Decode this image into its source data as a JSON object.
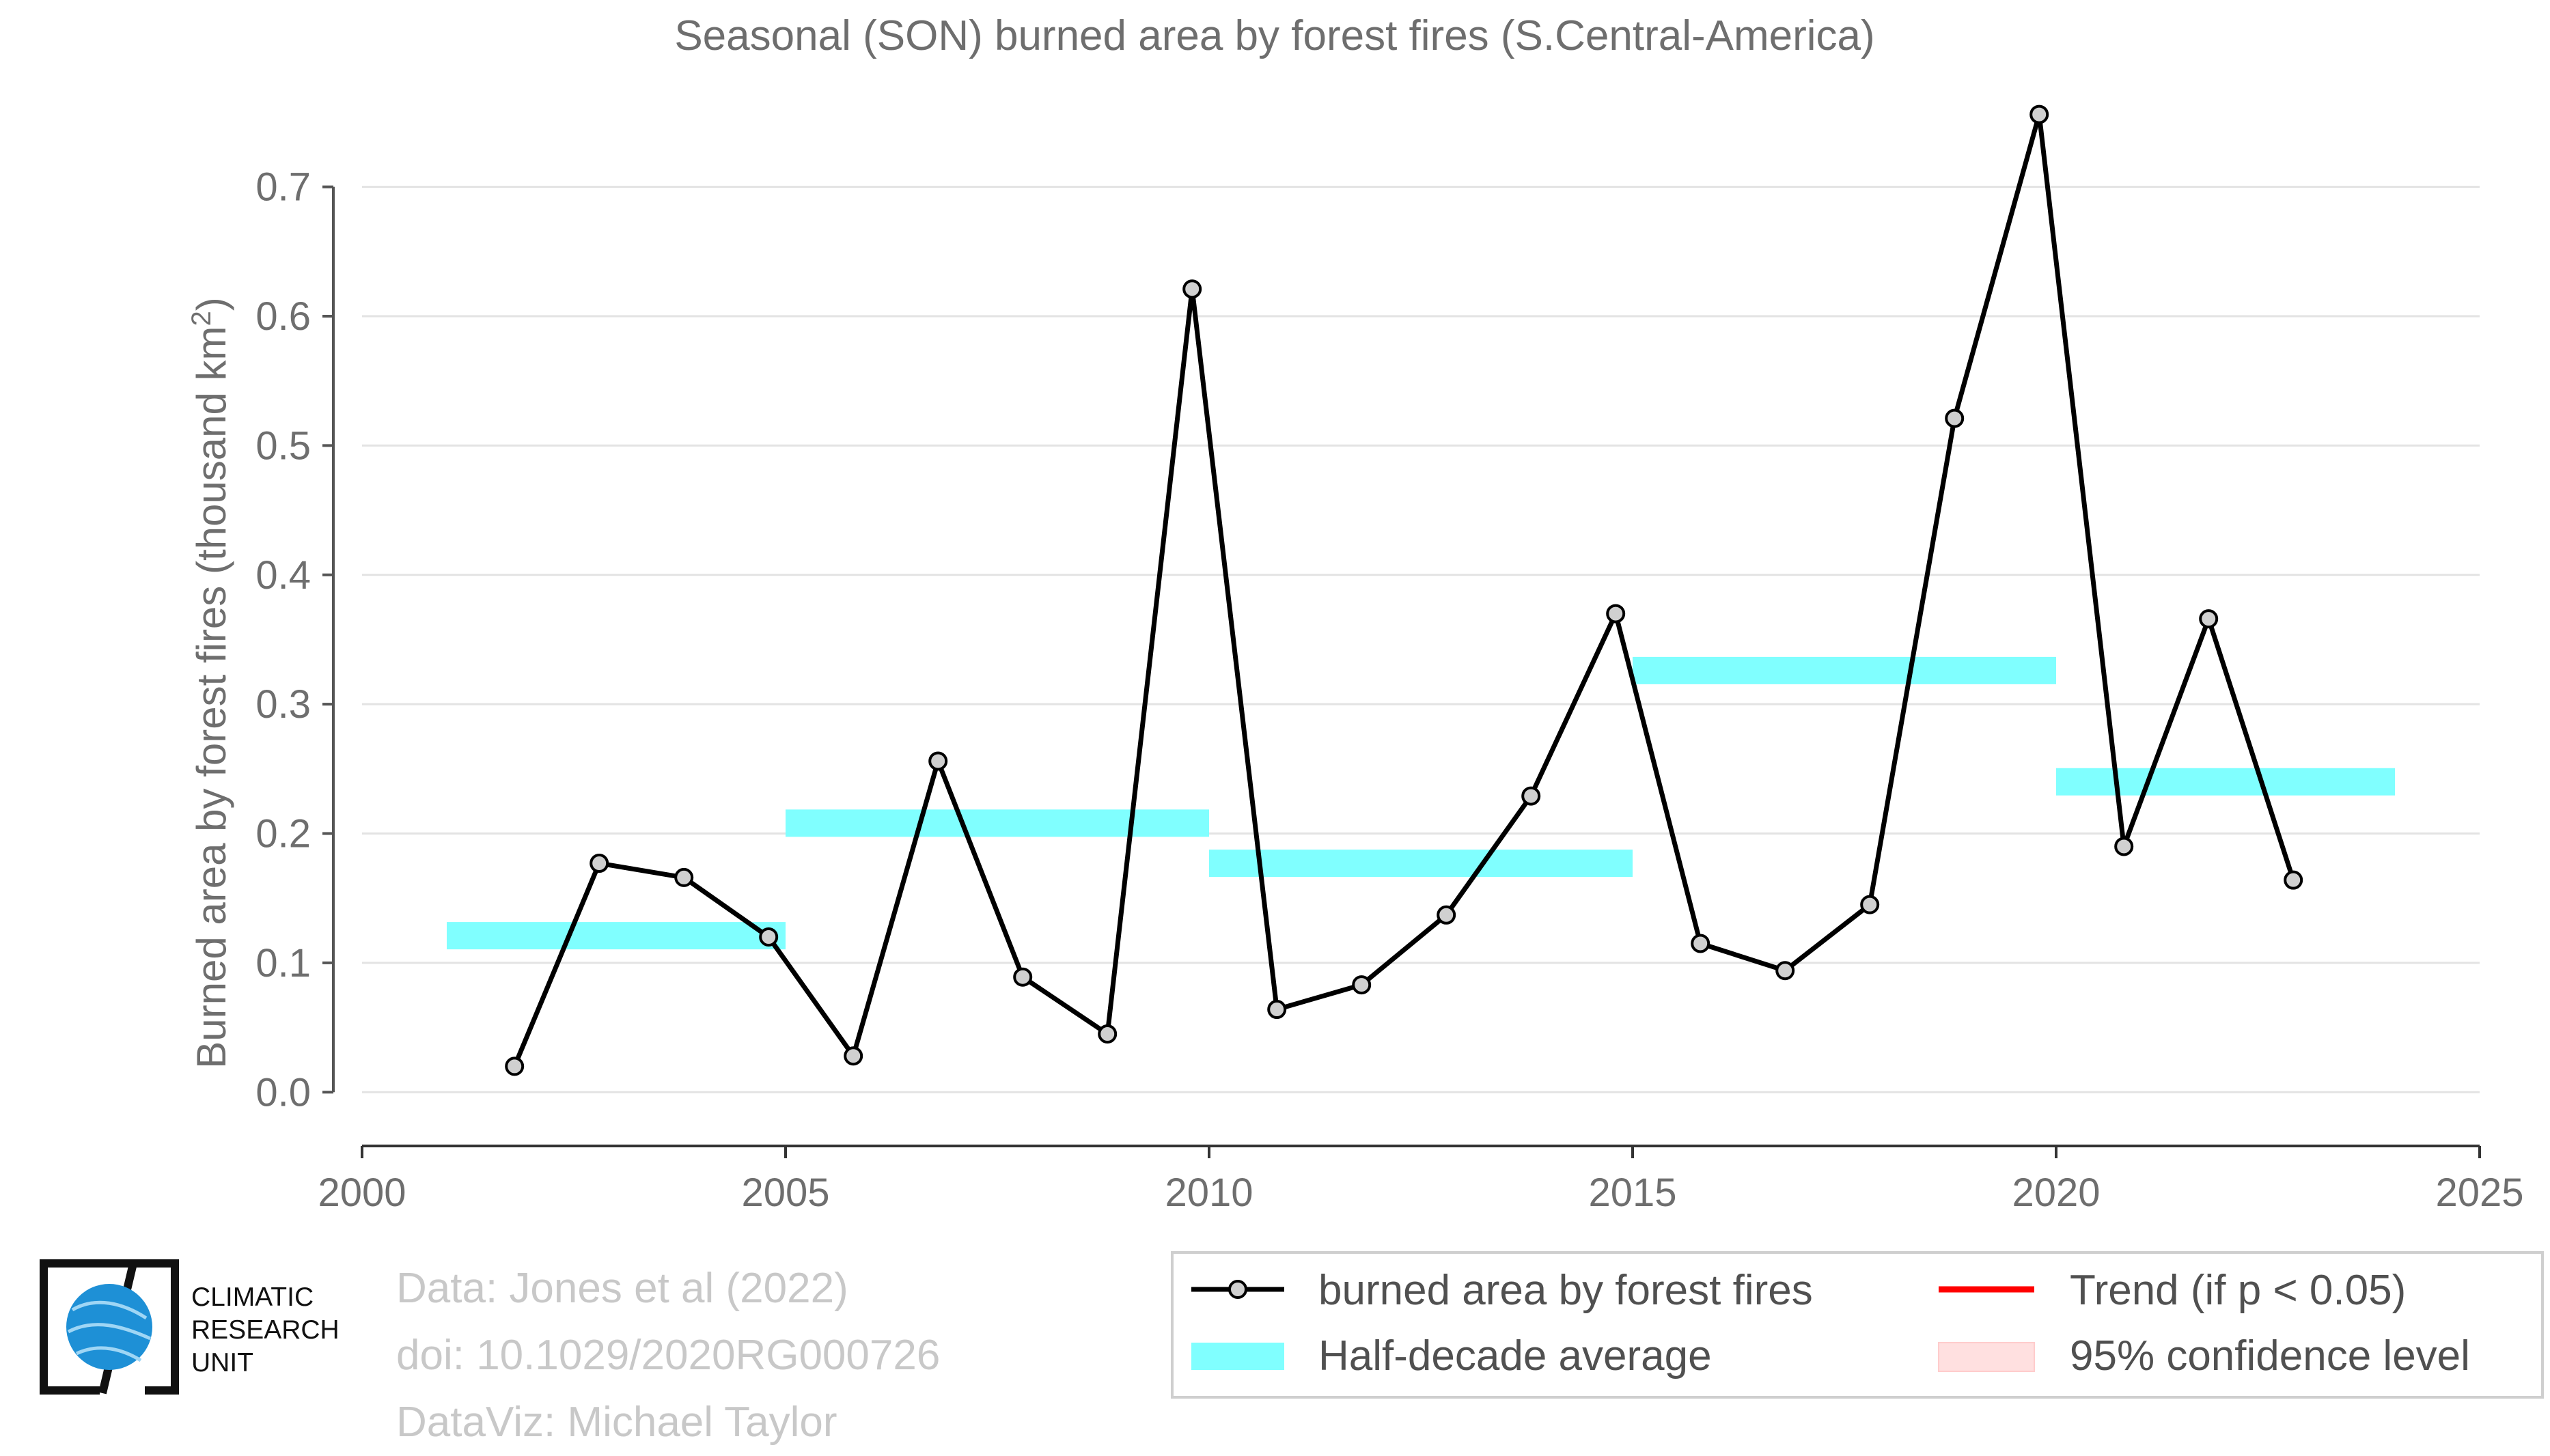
{
  "chart_data": {
    "type": "line",
    "title": "Seasonal (SON) burned area by forest fires (S.Central-America)",
    "ylabel_main": "Burned area by forest fires (thousand km",
    "ylabel_sup": "2",
    "ylabel_close": ")",
    "xlim": [
      2000,
      2025
    ],
    "ylim": [
      -0.04,
      0.76
    ],
    "x_ticks": [
      2000,
      2005,
      2010,
      2015,
      2020,
      2025
    ],
    "y_ticks": [
      0.0,
      0.1,
      0.2,
      0.3,
      0.4,
      0.5,
      0.6,
      0.7
    ],
    "y_tick_labels": [
      "0.0",
      "0.1",
      "0.2",
      "0.3",
      "0.4",
      "0.5",
      "0.6",
      "0.7"
    ],
    "grid": "horizontal",
    "series": [
      {
        "name": "burned area by forest fires",
        "color": "#000000",
        "marker_fill": "#d0d0d0",
        "x": [
          2001.8,
          2002.8,
          2003.8,
          2004.8,
          2005.8,
          2006.8,
          2007.8,
          2008.8,
          2009.8,
          2010.8,
          2011.8,
          2012.8,
          2013.8,
          2014.8,
          2015.8,
          2016.8,
          2017.8,
          2018.8,
          2019.8,
          2020.8,
          2021.8,
          2022.8
        ],
        "y": [
          0.02,
          0.177,
          0.166,
          0.12,
          0.028,
          0.256,
          0.089,
          0.045,
          0.621,
          0.064,
          0.083,
          0.137,
          0.229,
          0.37,
          0.115,
          0.094,
          0.145,
          0.521,
          0.756,
          0.19,
          0.366,
          0.164
        ]
      }
    ],
    "half_decade_average": {
      "name": "Half-decade average",
      "color": "#80ffff",
      "segments": [
        {
          "x0": 2001,
          "x1": 2005,
          "y": 0.121
        },
        {
          "x0": 2005,
          "x1": 2010,
          "y": 0.208
        },
        {
          "x0": 2010,
          "x1": 2015,
          "y": 0.177
        },
        {
          "x0": 2015,
          "x1": 2020,
          "y": 0.326
        },
        {
          "x0": 2020,
          "x1": 2024,
          "y": 0.24
        }
      ]
    },
    "legend": {
      "placement": "bottom-right",
      "entries": [
        {
          "label": "burned area by forest fires",
          "type": "line-marker",
          "color": "#000000"
        },
        {
          "label": "Trend (if p < 0.05)",
          "type": "line",
          "color": "#ff0000"
        },
        {
          "label": "Half-decade average",
          "type": "band",
          "color": "#80ffff"
        },
        {
          "label": "95% confidence level",
          "type": "band",
          "color": "#ffe0e0"
        }
      ]
    }
  },
  "credits": {
    "line1": "Data: Jones et al (2022)",
    "line2": "doi: 10.1029/2020RG000726",
    "line3": "DataViz: Michael Taylor"
  },
  "logo": {
    "line1": "CLIMATIC",
    "line2": "RESEARCH",
    "line3": "UNIT",
    "globe_color": "#1e90d6"
  }
}
